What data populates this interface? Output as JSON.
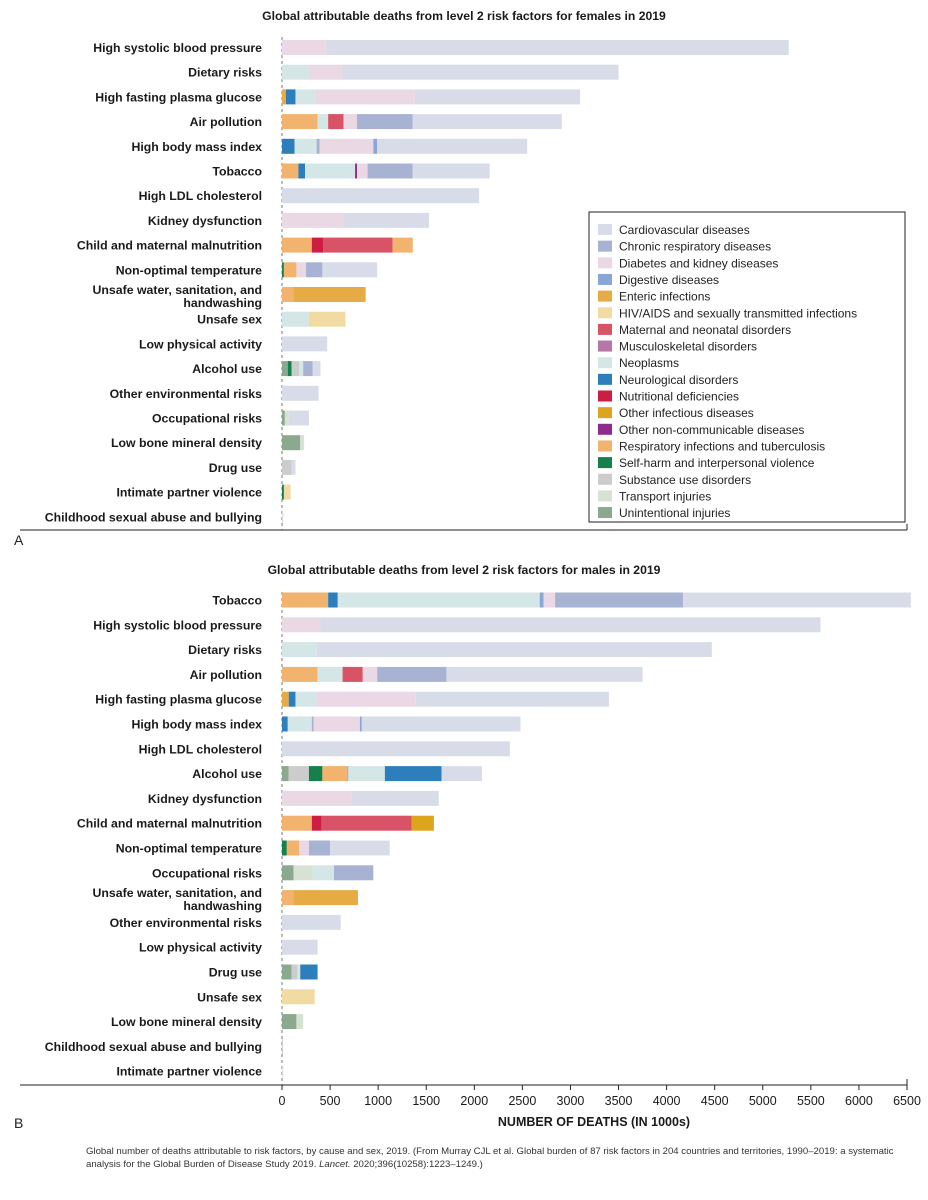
{
  "chart_data": [
    {
      "type": "bar",
      "orientation": "horizontal",
      "stacked": true,
      "panel_letter": "A",
      "title": "Global attributable deaths from level 2 risk factors for females in 2019",
      "xlim": [
        0,
        6500
      ],
      "legend": {
        "placement": "lower-right",
        "items": [
          {
            "name": "Cardiovascular diseases",
            "color": "#d8dce9"
          },
          {
            "name": "Chronic respiratory diseases",
            "color": "#a8b3d4"
          },
          {
            "name": "Diabetes and kidney diseases",
            "color": "#ead8e4"
          },
          {
            "name": "Digestive diseases",
            "color": "#88a6d6"
          },
          {
            "name": "Enteric infections",
            "color": "#e7ab45"
          },
          {
            "name": "HIV/AIDS and sexually transmitted infections",
            "color": "#f2dba2"
          },
          {
            "name": "Maternal and neonatal disorders",
            "color": "#d95367"
          },
          {
            "name": "Musculoskeletal disorders",
            "color": "#b576a8"
          },
          {
            "name": "Neoplasms",
            "color": "#d4e6e6"
          },
          {
            "name": "Neurological disorders",
            "color": "#2d7fbb"
          },
          {
            "name": "Nutritional deficiencies",
            "color": "#cc1d43"
          },
          {
            "name": "Other infectious diseases",
            "color": "#dca51d"
          },
          {
            "name": "Other non-communicable diseases",
            "color": "#8f2b8b"
          },
          {
            "name": "Respiratory infections and tuberculosis",
            "color": "#f2b36f"
          },
          {
            "name": "Self-harm and interpersonal violence",
            "color": "#16804d"
          },
          {
            "name": "Substance use disorders",
            "color": "#cccccc"
          },
          {
            "name": "Transport injuries",
            "color": "#d7e2d4"
          },
          {
            "name": "Unintentional injuries",
            "color": "#8aa98e"
          }
        ]
      },
      "categories": [
        "High systolic blood pressure",
        "Dietary risks",
        "High fasting plasma glucose",
        "Air pollution",
        "High body mass index",
        "Tobacco",
        "High LDL cholesterol",
        "Kidney dysfunction",
        "Child and maternal malnutrition",
        "Non-optimal temperature",
        "Unsafe water, sanitation, and handwashing",
        "Unsafe sex",
        "Low physical activity",
        "Alcohol use",
        "Other environmental risks",
        "Occupational risks",
        "Low bone mineral density",
        "Drug use",
        "Intimate partner violence",
        "Childhood sexual abuse and bullying"
      ],
      "segments": [
        [
          {
            "s": "Diabetes and kidney diseases",
            "v": 450
          },
          {
            "s": "Cardiovascular diseases",
            "v": 4820
          }
        ],
        [
          {
            "s": "Neoplasms",
            "v": 280
          },
          {
            "s": "Diabetes and kidney diseases",
            "v": 350
          },
          {
            "s": "Cardiovascular diseases",
            "v": 2870
          }
        ],
        [
          {
            "s": "Enteric infections",
            "v": 40
          },
          {
            "s": "Neurological disorders",
            "v": 100
          },
          {
            "s": "Neoplasms",
            "v": 200
          },
          {
            "s": "Diabetes and kidney diseases",
            "v": 1040
          },
          {
            "s": "Cardiovascular diseases",
            "v": 1720
          }
        ],
        [
          {
            "s": "Respiratory infections and tuberculosis",
            "v": 370
          },
          {
            "s": "Neoplasms",
            "v": 110
          },
          {
            "s": "Maternal and neonatal disorders",
            "v": 160
          },
          {
            "s": "Diabetes and kidney diseases",
            "v": 140
          },
          {
            "s": "Chronic respiratory diseases",
            "v": 580
          },
          {
            "s": "Cardiovascular diseases",
            "v": 1550
          }
        ],
        [
          {
            "s": "Neurological disorders",
            "v": 130
          },
          {
            "s": "Neoplasms",
            "v": 230
          },
          {
            "s": "Chronic respiratory diseases",
            "v": 30
          },
          {
            "s": "Diabetes and kidney diseases",
            "v": 560
          },
          {
            "s": "Digestive diseases",
            "v": 40
          },
          {
            "s": "Cardiovascular diseases",
            "v": 1560
          }
        ],
        [
          {
            "s": "Respiratory infections and tuberculosis",
            "v": 170
          },
          {
            "s": "Neurological disorders",
            "v": 70
          },
          {
            "s": "Neoplasms",
            "v": 520
          },
          {
            "s": "Other non-communicable diseases",
            "v": 20
          },
          {
            "s": "Diabetes and kidney diseases",
            "v": 110
          },
          {
            "s": "Chronic respiratory diseases",
            "v": 470
          },
          {
            "s": "Cardiovascular diseases",
            "v": 800
          }
        ],
        [
          {
            "s": "Cardiovascular diseases",
            "v": 2050
          }
        ],
        [
          {
            "s": "Diabetes and kidney diseases",
            "v": 650
          },
          {
            "s": "Cardiovascular diseases",
            "v": 880
          }
        ],
        [
          {
            "s": "Respiratory infections and tuberculosis",
            "v": 310
          },
          {
            "s": "Nutritional deficiencies",
            "v": 120
          },
          {
            "s": "Maternal and neonatal disorders",
            "v": 720
          },
          {
            "s": "Respiratory infections and tuberculosis",
            "v": 210
          }
        ],
        [
          {
            "s": "Self-harm and interpersonal violence",
            "v": 20
          },
          {
            "s": "Respiratory infections and tuberculosis",
            "v": 130
          },
          {
            "s": "Diabetes and kidney diseases",
            "v": 100
          },
          {
            "s": "Chronic respiratory diseases",
            "v": 170
          },
          {
            "s": "Cardiovascular diseases",
            "v": 570
          }
        ],
        [
          {
            "s": "Respiratory infections and tuberculosis",
            "v": 120
          },
          {
            "s": "Enteric infections",
            "v": 750
          }
        ],
        [
          {
            "s": "Neoplasms",
            "v": 280
          },
          {
            "s": "HIV/AIDS and sexually transmitted infections",
            "v": 380
          }
        ],
        [
          {
            "s": "Cardiovascular diseases",
            "v": 470
          }
        ],
        [
          {
            "s": "Unintentional injuries",
            "v": 60
          },
          {
            "s": "Self-harm and interpersonal violence",
            "v": 40
          },
          {
            "s": "Substance use disorders",
            "v": 80
          },
          {
            "s": "Neoplasms",
            "v": 40
          },
          {
            "s": "Chronic respiratory diseases",
            "v": 100
          },
          {
            "s": "Cardiovascular diseases",
            "v": 80
          }
        ],
        [
          {
            "s": "Cardiovascular diseases",
            "v": 380
          }
        ],
        [
          {
            "s": "Unintentional injuries",
            "v": 30
          },
          {
            "s": "Transport injuries",
            "v": 40
          },
          {
            "s": "Cardiovascular diseases",
            "v": 210
          }
        ],
        [
          {
            "s": "Unintentional injuries",
            "v": 190
          },
          {
            "s": "Transport injuries",
            "v": 40
          }
        ],
        [
          {
            "s": "Substance use disorders",
            "v": 100
          },
          {
            "s": "Cardiovascular diseases",
            "v": 40
          }
        ],
        [
          {
            "s": "Self-harm and interpersonal violence",
            "v": 20
          },
          {
            "s": "HIV/AIDS and sexually transmitted infections",
            "v": 70
          }
        ],
        []
      ]
    },
    {
      "type": "bar",
      "orientation": "horizontal",
      "stacked": true,
      "panel_letter": "B",
      "title": "Global attributable deaths from level 2 risk factors for males in 2019",
      "xlabel": "NUMBER OF DEATHS (IN 1000s)",
      "xlim": [
        0,
        6500
      ],
      "xticks": [
        "0",
        "500",
        "1000",
        "1500",
        "2000",
        "2500",
        "3000",
        "3500",
        "4000",
        "4500",
        "5000",
        "5500",
        "6000",
        "6500"
      ],
      "categories": [
        "Tobacco",
        "High systolic blood pressure",
        "Dietary risks",
        "Air pollution",
        "High fasting plasma glucose",
        "High body mass index",
        "High LDL cholesterol",
        "Alcohol use",
        "Kidney dysfunction",
        "Child and maternal malnutrition",
        "Non-optimal temperature",
        "Occupational risks",
        "Unsafe water, sanitation, and handwashing",
        "Other environmental risks",
        "Low physical activity",
        "Drug use",
        "Unsafe sex",
        "Low bone mineral density",
        "Childhood sexual abuse and bullying",
        "Intimate partner violence"
      ],
      "segments": [
        [
          {
            "s": "Respiratory infections and tuberculosis",
            "v": 480
          },
          {
            "s": "Neurological disorders",
            "v": 100
          },
          {
            "s": "Neoplasms",
            "v": 2100
          },
          {
            "s": "Digestive diseases",
            "v": 40
          },
          {
            "s": "Diabetes and kidney diseases",
            "v": 120
          },
          {
            "s": "Chronic respiratory diseases",
            "v": 1330
          },
          {
            "s": "Cardiovascular diseases",
            "v": 2370
          }
        ],
        [
          {
            "s": "Diabetes and kidney diseases",
            "v": 400
          },
          {
            "s": "Cardiovascular diseases",
            "v": 5200
          }
        ],
        [
          {
            "s": "Neoplasms",
            "v": 360
          },
          {
            "s": "Cardiovascular diseases",
            "v": 4110
          }
        ],
        [
          {
            "s": "Respiratory infections and tuberculosis",
            "v": 370
          },
          {
            "s": "Neoplasms",
            "v": 260
          },
          {
            "s": "Maternal and neonatal disorders",
            "v": 210
          },
          {
            "s": "Diabetes and kidney diseases",
            "v": 150
          },
          {
            "s": "Chronic respiratory diseases",
            "v": 720
          },
          {
            "s": "Cardiovascular diseases",
            "v": 2040
          }
        ],
        [
          {
            "s": "Enteric infections",
            "v": 70
          },
          {
            "s": "Neurological disorders",
            "v": 70
          },
          {
            "s": "Neoplasms",
            "v": 220
          },
          {
            "s": "Diabetes and kidney diseases",
            "v": 1030
          },
          {
            "s": "Cardiovascular diseases",
            "v": 2010
          }
        ],
        [
          {
            "s": "Neurological disorders",
            "v": 60
          },
          {
            "s": "Neoplasms",
            "v": 250
          },
          {
            "s": "Chronic respiratory diseases",
            "v": 20
          },
          {
            "s": "Diabetes and kidney diseases",
            "v": 480
          },
          {
            "s": "Digestive diseases",
            "v": 20
          },
          {
            "s": "Cardiovascular diseases",
            "v": 1650
          }
        ],
        [
          {
            "s": "Cardiovascular diseases",
            "v": 2370
          }
        ],
        [
          {
            "s": "Unintentional injuries",
            "v": 70
          },
          {
            "s": "Substance use disorders",
            "v": 210
          },
          {
            "s": "Self-harm and interpersonal violence",
            "v": 140
          },
          {
            "s": "Respiratory infections and tuberculosis",
            "v": 260
          },
          {
            "s": "Digestive diseases",
            "v": 10
          },
          {
            "s": "Neoplasms",
            "v": 380
          },
          {
            "s": "Neurological disorders",
            "v": 590
          },
          {
            "s": "Cardiovascular diseases",
            "v": 420
          }
        ],
        [
          {
            "s": "Diabetes and kidney diseases",
            "v": 720
          },
          {
            "s": "Cardiovascular diseases",
            "v": 910
          }
        ],
        [
          {
            "s": "Respiratory infections and tuberculosis",
            "v": 310
          },
          {
            "s": "Nutritional deficiencies",
            "v": 100
          },
          {
            "s": "Maternal and neonatal disorders",
            "v": 940
          },
          {
            "s": "Other infectious diseases",
            "v": 230
          }
        ],
        [
          {
            "s": "Self-harm and interpersonal violence",
            "v": 50
          },
          {
            "s": "Respiratory infections and tuberculosis",
            "v": 130
          },
          {
            "s": "Diabetes and kidney diseases",
            "v": 100
          },
          {
            "s": "Chronic respiratory diseases",
            "v": 220
          },
          {
            "s": "Cardiovascular diseases",
            "v": 620
          }
        ],
        [
          {
            "s": "Unintentional injuries",
            "v": 120
          },
          {
            "s": "Transport injuries",
            "v": 200
          },
          {
            "s": "Neoplasms",
            "v": 220
          },
          {
            "s": "Chronic respiratory diseases",
            "v": 410
          }
        ],
        [
          {
            "s": "Respiratory infections and tuberculosis",
            "v": 120
          },
          {
            "s": "Enteric infections",
            "v": 670
          }
        ],
        [
          {
            "s": "Cardiovascular diseases",
            "v": 610
          }
        ],
        [
          {
            "s": "Cardiovascular diseases",
            "v": 370
          }
        ],
        [
          {
            "s": "Unintentional injuries",
            "v": 100
          },
          {
            "s": "Substance use disorders",
            "v": 60
          },
          {
            "s": "Neoplasms",
            "v": 30
          },
          {
            "s": "Neurological disorders",
            "v": 180
          }
        ],
        [
          {
            "s": "HIV/AIDS and sexually transmitted infections",
            "v": 340
          }
        ],
        [
          {
            "s": "Unintentional injuries",
            "v": 150
          },
          {
            "s": "Transport injuries",
            "v": 70
          }
        ],
        [
          {
            "s": "Substance use disorders",
            "v": 10
          }
        ],
        []
      ]
    }
  ],
  "caption": {
    "text": "Global number of deaths attributable to risk factors, by cause and sex, 2019. (From Murray CJL et al. Global burden of 87 risk factors in 204 countries and territories, 1990–2019: a systematic analysis for the Global Burden of Disease Study 2019. ",
    "journal": "Lancet.",
    "citation": " 2020;396(10258):1223–1249.)"
  }
}
